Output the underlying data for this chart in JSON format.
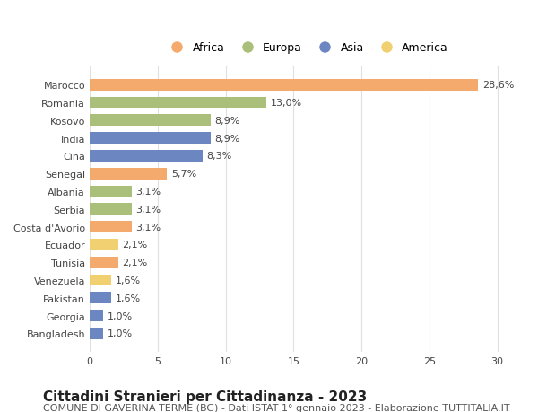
{
  "countries": [
    "Marocco",
    "Romania",
    "Kosovo",
    "India",
    "Cina",
    "Senegal",
    "Albania",
    "Serbia",
    "Costa d'Avorio",
    "Ecuador",
    "Tunisia",
    "Venezuela",
    "Pakistan",
    "Georgia",
    "Bangladesh"
  ],
  "values": [
    28.6,
    13.0,
    8.9,
    8.9,
    8.3,
    5.7,
    3.1,
    3.1,
    3.1,
    2.1,
    2.1,
    1.6,
    1.6,
    1.0,
    1.0
  ],
  "labels": [
    "28,6%",
    "13,0%",
    "8,9%",
    "8,9%",
    "8,3%",
    "5,7%",
    "3,1%",
    "3,1%",
    "3,1%",
    "2,1%",
    "2,1%",
    "1,6%",
    "1,6%",
    "1,0%",
    "1,0%"
  ],
  "continents": [
    "Africa",
    "Europa",
    "Europa",
    "Asia",
    "Asia",
    "Africa",
    "Europa",
    "Europa",
    "Africa",
    "America",
    "Africa",
    "America",
    "Asia",
    "Asia",
    "Asia"
  ],
  "continent_colors": {
    "Africa": "#F4A96D",
    "Europa": "#AABF7A",
    "Asia": "#6B86C0",
    "America": "#F0D070"
  },
  "legend_order": [
    "Africa",
    "Europa",
    "Asia",
    "America"
  ],
  "title": "Cittadini Stranieri per Cittadinanza - 2023",
  "subtitle": "COMUNE DI GAVERINA TERME (BG) - Dati ISTAT 1° gennaio 2023 - Elaborazione TUTTITALIA.IT",
  "xlim": [
    0,
    32
  ],
  "xticks": [
    0,
    5,
    10,
    15,
    20,
    25,
    30
  ],
  "background_color": "#ffffff",
  "grid_color": "#e0e0e0",
  "bar_height": 0.65,
  "title_fontsize": 11,
  "subtitle_fontsize": 8,
  "label_fontsize": 8,
  "tick_fontsize": 8,
  "legend_fontsize": 9
}
